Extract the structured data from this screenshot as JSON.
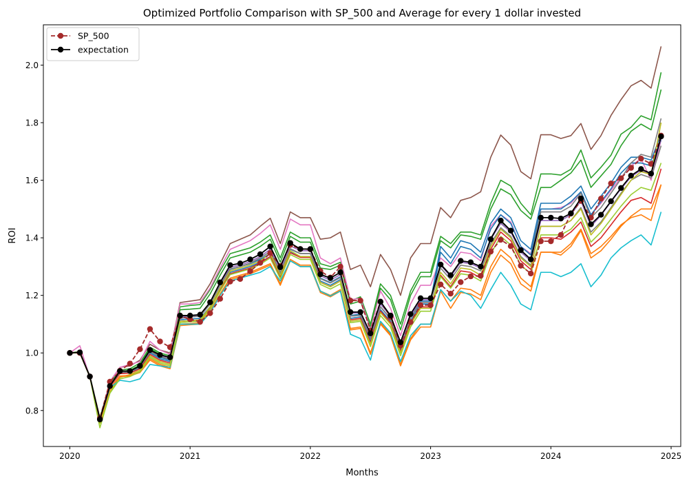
{
  "chart_data": {
    "type": "line",
    "title": "Optimized Portfolio Comparison with SP_500 and Average for every 1 dollar invested",
    "xlabel": "Months",
    "ylabel": "ROI",
    "xlim": [
      2019.78,
      2025.08
    ],
    "ylim": [
      0.675,
      2.14
    ],
    "x_ticks": [
      2020,
      2021,
      2022,
      2023,
      2024,
      2025
    ],
    "x_tick_labels": [
      "2020",
      "2021",
      "2022",
      "2023",
      "2024",
      "2025"
    ],
    "y_ticks": [
      0.8,
      1.0,
      1.2,
      1.4,
      1.6,
      1.8,
      2.0
    ],
    "y_tick_labels": [
      "0.8",
      "1.0",
      "1.2",
      "1.4",
      "1.6",
      "1.8",
      "2.0"
    ],
    "grid": false,
    "legend_position": "top-left",
    "x_start": "2020-01",
    "x_step": "month",
    "highlighted": [
      {
        "name": "SP_500",
        "color": "#a52a2a",
        "style": "dashed",
        "marker": "circle",
        "values": [
          1.0,
          1.0,
          0.918,
          0.773,
          0.9,
          0.938,
          0.963,
          1.013,
          1.083,
          1.04,
          1.02,
          1.128,
          1.117,
          1.108,
          1.138,
          1.188,
          1.248,
          1.257,
          1.284,
          1.313,
          1.347,
          1.302,
          1.375,
          1.361,
          1.36,
          1.285,
          1.262,
          1.3,
          1.182,
          1.182,
          1.078,
          1.178,
          1.125,
          1.026,
          1.107,
          1.166,
          1.166,
          1.238,
          1.206,
          1.246,
          1.266,
          1.268,
          1.352,
          1.393,
          1.371,
          1.303,
          1.276,
          1.388,
          1.388,
          1.41,
          1.484,
          1.528,
          1.47,
          1.536,
          1.589,
          1.607,
          1.643,
          1.675,
          1.657,
          1.755
        ]
      },
      {
        "name": "expectation",
        "color": "#000000",
        "style": "solid",
        "marker": "circle",
        "values": [
          1.0,
          1.002,
          0.918,
          0.769,
          0.885,
          0.937,
          0.937,
          0.955,
          1.01,
          0.993,
          0.985,
          1.13,
          1.13,
          1.133,
          1.176,
          1.245,
          1.305,
          1.311,
          1.325,
          1.343,
          1.37,
          1.298,
          1.382,
          1.361,
          1.361,
          1.273,
          1.26,
          1.28,
          1.142,
          1.142,
          1.068,
          1.178,
          1.13,
          1.037,
          1.135,
          1.19,
          1.19,
          1.307,
          1.27,
          1.32,
          1.315,
          1.3,
          1.395,
          1.46,
          1.425,
          1.357,
          1.325,
          1.47,
          1.47,
          1.467,
          1.485,
          1.537,
          1.447,
          1.48,
          1.527,
          1.573,
          1.616,
          1.639,
          1.623,
          1.752
        ]
      }
    ],
    "portfolios": [
      {
        "color": "#8c564b",
        "values": [
          1.0,
          1.005,
          0.92,
          0.77,
          0.9,
          0.95,
          0.955,
          0.975,
          1.03,
          1.01,
          1.0,
          1.175,
          1.18,
          1.185,
          1.24,
          1.31,
          1.38,
          1.395,
          1.41,
          1.44,
          1.468,
          1.38,
          1.49,
          1.47,
          1.47,
          1.395,
          1.4,
          1.42,
          1.29,
          1.305,
          1.23,
          1.342,
          1.29,
          1.2,
          1.33,
          1.38,
          1.38,
          1.505,
          1.47,
          1.53,
          1.54,
          1.56,
          1.68,
          1.757,
          1.722,
          1.63,
          1.605,
          1.758,
          1.758,
          1.745,
          1.755,
          1.797,
          1.707,
          1.755,
          1.825,
          1.88,
          1.928,
          1.947,
          1.92,
          2.065
        ]
      },
      {
        "color": "#2ca02c",
        "values": [
          1.0,
          1.003,
          0.92,
          0.775,
          0.895,
          0.94,
          0.945,
          0.965,
          1.02,
          1.0,
          0.99,
          1.16,
          1.165,
          1.168,
          1.22,
          1.285,
          1.345,
          1.355,
          1.365,
          1.385,
          1.41,
          1.33,
          1.42,
          1.4,
          1.4,
          1.31,
          1.3,
          1.315,
          1.18,
          1.195,
          1.1,
          1.24,
          1.2,
          1.1,
          1.215,
          1.28,
          1.28,
          1.405,
          1.38,
          1.42,
          1.42,
          1.41,
          1.52,
          1.6,
          1.58,
          1.52,
          1.48,
          1.622,
          1.622,
          1.618,
          1.638,
          1.705,
          1.608,
          1.645,
          1.687,
          1.76,
          1.784,
          1.824,
          1.81,
          1.975
        ]
      },
      {
        "color": "#2ca02c",
        "values": [
          1.0,
          1.003,
          0.918,
          0.772,
          0.89,
          0.935,
          0.94,
          0.958,
          1.015,
          0.995,
          0.985,
          1.15,
          1.152,
          1.155,
          1.205,
          1.27,
          1.33,
          1.34,
          1.35,
          1.37,
          1.395,
          1.315,
          1.405,
          1.385,
          1.385,
          1.295,
          1.29,
          1.305,
          1.17,
          1.18,
          1.09,
          1.225,
          1.185,
          1.08,
          1.2,
          1.265,
          1.265,
          1.39,
          1.365,
          1.41,
          1.405,
          1.395,
          1.5,
          1.57,
          1.55,
          1.495,
          1.465,
          1.575,
          1.575,
          1.6,
          1.625,
          1.67,
          1.575,
          1.615,
          1.655,
          1.72,
          1.77,
          1.795,
          1.775,
          1.915
        ]
      },
      {
        "color": "#e377c2",
        "values": [
          1.0,
          1.025,
          0.915,
          0.77,
          0.9,
          0.95,
          0.96,
          0.97,
          1.04,
          1.01,
          0.995,
          1.17,
          1.17,
          1.175,
          1.225,
          1.295,
          1.36,
          1.375,
          1.39,
          1.415,
          1.445,
          1.36,
          1.465,
          1.445,
          1.445,
          1.33,
          1.31,
          1.33,
          1.185,
          1.19,
          1.08,
          1.215,
          1.155,
          1.06,
          1.17,
          1.235,
          1.235,
          1.33,
          1.3,
          1.35,
          1.345,
          1.32,
          1.44,
          1.48,
          1.455,
          1.37,
          1.345,
          1.5,
          1.5,
          1.505,
          1.52,
          1.56,
          1.48,
          1.52,
          1.565,
          1.61,
          1.65,
          1.675,
          1.6,
          1.74
        ]
      },
      {
        "color": "#1f77b4",
        "values": [
          1.0,
          1.0,
          0.918,
          0.77,
          0.885,
          0.932,
          0.935,
          0.95,
          1.005,
          0.985,
          0.975,
          1.12,
          1.125,
          1.128,
          1.17,
          1.235,
          1.29,
          1.3,
          1.31,
          1.325,
          1.345,
          1.275,
          1.36,
          1.345,
          1.345,
          1.26,
          1.245,
          1.265,
          1.13,
          1.135,
          1.05,
          1.16,
          1.12,
          1.02,
          1.12,
          1.18,
          1.18,
          1.37,
          1.33,
          1.39,
          1.38,
          1.35,
          1.45,
          1.5,
          1.47,
          1.39,
          1.36,
          1.52,
          1.52,
          1.52,
          1.545,
          1.58,
          1.5,
          1.545,
          1.59,
          1.645,
          1.68,
          1.68,
          1.67,
          1.76
        ]
      },
      {
        "color": "#1f77b4",
        "values": [
          1.0,
          1.0,
          0.918,
          0.77,
          0.882,
          0.93,
          0.932,
          0.948,
          1.0,
          0.98,
          0.97,
          1.115,
          1.118,
          1.12,
          1.16,
          1.225,
          1.28,
          1.29,
          1.3,
          1.315,
          1.335,
          1.265,
          1.35,
          1.335,
          1.335,
          1.25,
          1.235,
          1.255,
          1.12,
          1.125,
          1.04,
          1.15,
          1.11,
          1.01,
          1.11,
          1.17,
          1.17,
          1.35,
          1.31,
          1.37,
          1.36,
          1.33,
          1.43,
          1.48,
          1.45,
          1.37,
          1.34,
          1.5,
          1.5,
          1.5,
          1.525,
          1.56,
          1.48,
          1.525,
          1.57,
          1.625,
          1.66,
          1.66,
          1.65,
          1.74
        ]
      },
      {
        "color": "#9467bd",
        "values": [
          1.0,
          1.0,
          0.917,
          0.772,
          0.888,
          0.935,
          0.938,
          0.953,
          1.008,
          0.99,
          0.98,
          1.125,
          1.128,
          1.13,
          1.172,
          1.24,
          1.298,
          1.305,
          1.318,
          1.335,
          1.36,
          1.29,
          1.372,
          1.355,
          1.355,
          1.268,
          1.253,
          1.272,
          1.138,
          1.14,
          1.062,
          1.17,
          1.128,
          1.03,
          1.128,
          1.185,
          1.185,
          1.305,
          1.265,
          1.315,
          1.31,
          1.295,
          1.395,
          1.45,
          1.42,
          1.35,
          1.32,
          1.46,
          1.46,
          1.46,
          1.48,
          1.528,
          1.44,
          1.478,
          1.525,
          1.57,
          1.612,
          1.635,
          1.62,
          1.745
        ]
      },
      {
        "color": "#d62728",
        "values": [
          1.0,
          1.0,
          0.917,
          0.772,
          0.882,
          0.928,
          0.93,
          0.945,
          0.995,
          0.975,
          0.965,
          1.11,
          1.112,
          1.115,
          1.155,
          1.22,
          1.275,
          1.285,
          1.295,
          1.312,
          1.335,
          1.265,
          1.348,
          1.332,
          1.332,
          1.245,
          1.23,
          1.25,
          1.115,
          1.12,
          1.035,
          1.145,
          1.105,
          1.005,
          1.105,
          1.16,
          1.16,
          1.27,
          1.23,
          1.285,
          1.28,
          1.26,
          1.36,
          1.42,
          1.39,
          1.32,
          1.29,
          1.4,
          1.4,
          1.395,
          1.42,
          1.455,
          1.37,
          1.4,
          1.445,
          1.49,
          1.53,
          1.54,
          1.52,
          1.64
        ]
      },
      {
        "color": "#7f7f7f",
        "values": [
          1.0,
          1.0,
          0.917,
          0.772,
          0.886,
          0.933,
          0.935,
          0.952,
          1.005,
          0.988,
          0.978,
          1.122,
          1.125,
          1.128,
          1.17,
          1.235,
          1.292,
          1.3,
          1.312,
          1.33,
          1.352,
          1.28,
          1.362,
          1.345,
          1.345,
          1.258,
          1.243,
          1.262,
          1.128,
          1.13,
          1.05,
          1.16,
          1.118,
          1.02,
          1.12,
          1.175,
          1.175,
          1.295,
          1.255,
          1.305,
          1.3,
          1.285,
          1.38,
          1.435,
          1.405,
          1.335,
          1.305,
          1.44,
          1.44,
          1.44,
          1.46,
          1.505,
          1.42,
          1.455,
          1.505,
          1.555,
          1.6,
          1.62,
          1.608,
          1.72
        ]
      },
      {
        "color": "#7f7f7f",
        "values": [
          1.0,
          1.0,
          0.917,
          0.772,
          0.886,
          0.933,
          0.935,
          0.952,
          1.005,
          0.988,
          0.978,
          1.122,
          1.125,
          1.128,
          1.17,
          1.235,
          1.292,
          1.3,
          1.312,
          1.33,
          1.352,
          1.28,
          1.362,
          1.345,
          1.345,
          1.258,
          1.243,
          1.262,
          1.128,
          1.13,
          1.05,
          1.16,
          1.118,
          1.02,
          1.12,
          1.175,
          1.175,
          1.31,
          1.27,
          1.32,
          1.315,
          1.3,
          1.4,
          1.455,
          1.425,
          1.355,
          1.325,
          1.49,
          1.49,
          1.49,
          1.51,
          1.555,
          1.47,
          1.505,
          1.555,
          1.605,
          1.66,
          1.69,
          1.68,
          1.815
        ]
      },
      {
        "color": "#bcbd22",
        "values": [
          1.0,
          1.0,
          0.917,
          0.755,
          0.865,
          0.915,
          0.925,
          0.94,
          0.99,
          0.97,
          0.96,
          1.11,
          1.112,
          1.115,
          1.16,
          1.225,
          1.285,
          1.295,
          1.305,
          1.32,
          1.345,
          1.27,
          1.355,
          1.335,
          1.335,
          1.245,
          1.23,
          1.25,
          1.11,
          1.115,
          1.03,
          1.14,
          1.1,
          1.0,
          1.1,
          1.155,
          1.155,
          1.28,
          1.24,
          1.295,
          1.29,
          1.27,
          1.37,
          1.43,
          1.4,
          1.33,
          1.3,
          1.44,
          1.44,
          1.44,
          1.46,
          1.5,
          1.41,
          1.45,
          1.5,
          1.55,
          1.6,
          1.63,
          1.62,
          1.8
        ]
      },
      {
        "color": "#ff7f0e",
        "values": [
          1.0,
          1.0,
          0.917,
          0.765,
          0.875,
          0.92,
          0.922,
          0.935,
          0.98,
          0.96,
          0.95,
          1.1,
          1.102,
          1.105,
          1.145,
          1.205,
          1.26,
          1.27,
          1.28,
          1.295,
          1.31,
          1.24,
          1.325,
          1.305,
          1.305,
          1.215,
          1.2,
          1.22,
          1.085,
          1.09,
          1.0,
          1.105,
          1.065,
          0.96,
          1.05,
          1.1,
          1.1,
          1.22,
          1.18,
          1.225,
          1.22,
          1.2,
          1.3,
          1.36,
          1.33,
          1.26,
          1.23,
          1.35,
          1.35,
          1.34,
          1.37,
          1.425,
          1.33,
          1.355,
          1.395,
          1.44,
          1.475,
          1.5,
          1.5,
          1.585
        ]
      },
      {
        "color": "#ff7f0e",
        "values": [
          1.0,
          1.0,
          0.917,
          0.765,
          0.872,
          0.918,
          0.92,
          0.932,
          0.975,
          0.955,
          0.945,
          1.095,
          1.098,
          1.1,
          1.14,
          1.2,
          1.255,
          1.265,
          1.275,
          1.29,
          1.305,
          1.235,
          1.32,
          1.3,
          1.3,
          1.21,
          1.195,
          1.215,
          1.08,
          1.085,
          0.995,
          1.1,
          1.06,
          0.955,
          1.045,
          1.09,
          1.09,
          1.215,
          1.155,
          1.21,
          1.205,
          1.185,
          1.28,
          1.34,
          1.31,
          1.24,
          1.215,
          1.35,
          1.35,
          1.35,
          1.38,
          1.43,
          1.345,
          1.37,
          1.405,
          1.445,
          1.47,
          1.48,
          1.46,
          1.585
        ]
      },
      {
        "color": "#17becf",
        "values": [
          1.0,
          1.0,
          0.917,
          0.77,
          0.88,
          0.905,
          0.9,
          0.91,
          0.96,
          0.955,
          0.95,
          1.1,
          1.1,
          1.1,
          1.14,
          1.2,
          1.25,
          1.26,
          1.27,
          1.28,
          1.3,
          1.25,
          1.32,
          1.3,
          1.3,
          1.215,
          1.198,
          1.215,
          1.065,
          1.05,
          0.975,
          1.11,
          1.07,
          0.97,
          1.06,
          1.1,
          1.1,
          1.22,
          1.18,
          1.215,
          1.2,
          1.155,
          1.22,
          1.28,
          1.235,
          1.17,
          1.15,
          1.28,
          1.28,
          1.265,
          1.28,
          1.31,
          1.23,
          1.27,
          1.33,
          1.365,
          1.39,
          1.41,
          1.375,
          1.49
        ]
      },
      {
        "color": "#9acd32",
        "values": [
          1.0,
          1.0,
          0.917,
          0.74,
          0.86,
          0.91,
          0.918,
          0.935,
          0.985,
          0.965,
          0.955,
          1.105,
          1.108,
          1.11,
          1.152,
          1.215,
          1.272,
          1.282,
          1.292,
          1.308,
          1.33,
          1.258,
          1.342,
          1.325,
          1.325,
          1.238,
          1.222,
          1.24,
          1.105,
          1.11,
          1.022,
          1.13,
          1.09,
          0.99,
          1.09,
          1.145,
          1.145,
          1.265,
          1.225,
          1.275,
          1.27,
          1.25,
          1.345,
          1.405,
          1.375,
          1.305,
          1.275,
          1.41,
          1.41,
          1.41,
          1.43,
          1.47,
          1.385,
          1.42,
          1.465,
          1.51,
          1.55,
          1.575,
          1.565,
          1.66
        ]
      }
    ]
  }
}
